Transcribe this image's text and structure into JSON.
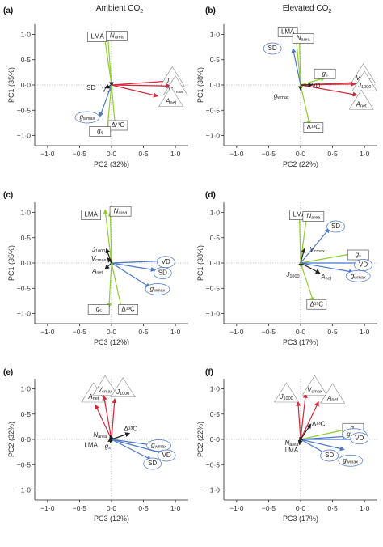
{
  "column_titles": {
    "left_main": "Ambient CO",
    "right_main": "Elevated CO",
    "sub": "2"
  },
  "colors": {
    "green": "#8fce2f",
    "blue": "#4b78c8",
    "red": "#d6263a",
    "black": "#222222",
    "box": "#555555"
  },
  "chart_data": [
    {
      "id": "a",
      "panel_label": "(a)",
      "type": "scatter",
      "xlabel": "PC2 (32%)",
      "ylabel": "PC1 (35%)",
      "xlim": [
        -1.2,
        1.2
      ],
      "ylim": [
        -1.2,
        1.2
      ],
      "xticks": [
        "−1·0",
        "−0·5",
        "0·0",
        "0·5",
        "1·0"
      ],
      "yticks": [
        "1·0",
        "0·5",
        "0·0",
        "−0·5",
        "−1·0"
      ],
      "vectors": [
        {
          "name": "LMA",
          "x": -0.12,
          "y": 1.05,
          "color": "green",
          "shape": "rect",
          "lx": -0.22,
          "ly": 0.95
        },
        {
          "name": "N",
          "sub": "area",
          "x": -0.06,
          "y": 1.0,
          "color": "green",
          "shape": "rect",
          "lx": 0.08,
          "ly": 0.97
        },
        {
          "name": "J",
          "sub": "1000",
          "x": 0.92,
          "y": 0.08,
          "color": "red",
          "shape": "tri",
          "lx": 0.95,
          "ly": 0.12
        },
        {
          "name": "V",
          "sub": "cmax",
          "x": 0.92,
          "y": -0.02,
          "color": "red",
          "shape": "tri",
          "lx": 1.0,
          "ly": -0.06
        },
        {
          "name": "A",
          "sub": "net",
          "x": 0.72,
          "y": -0.22,
          "color": "red",
          "shape": "tri",
          "lx": 0.93,
          "ly": -0.28
        },
        {
          "name": "SD",
          "x": -0.1,
          "y": -0.06,
          "color": "black",
          "shape": "none",
          "lx": -0.32,
          "ly": -0.06
        },
        {
          "name": "VD",
          "x": 0.0,
          "y": -0.02,
          "color": "black",
          "shape": "none",
          "lx": -0.08,
          "ly": -0.1
        },
        {
          "name": "g",
          "sub": "wmax",
          "x": -0.18,
          "y": -0.62,
          "color": "blue",
          "shape": "ellipse",
          "lx": -0.38,
          "ly": -0.64
        },
        {
          "name": "Δ¹³C",
          "x": 0.06,
          "y": -0.86,
          "color": "green",
          "shape": "rect",
          "lx": 0.1,
          "ly": -0.8
        },
        {
          "name": "g",
          "sub": "s",
          "x": -0.07,
          "y": -0.92,
          "color": "green",
          "shape": "rect",
          "lx": -0.18,
          "ly": -0.92
        }
      ]
    },
    {
      "id": "b",
      "panel_label": "(b)",
      "type": "scatter",
      "xlabel": "PC2 (22%)",
      "ylabel": "PC1 (38%)",
      "xlim": [
        -1.2,
        1.2
      ],
      "ylim": [
        -1.2,
        1.2
      ],
      "xticks": [
        "−1·0",
        "−0·5",
        "0·0",
        "0·5",
        "1·0"
      ],
      "yticks": [
        "1·0",
        "0·5",
        "0·0",
        "−0·5",
        "−1·0"
      ],
      "vectors": [
        {
          "name": "LMA",
          "x": -0.08,
          "y": 1.05,
          "color": "green",
          "shape": "rect",
          "lx": -0.2,
          "ly": 1.05
        },
        {
          "name": "N",
          "sub": "area",
          "x": -0.02,
          "y": 0.98,
          "color": "green",
          "shape": "rect",
          "lx": 0.04,
          "ly": 0.92
        },
        {
          "name": "SD",
          "x": -0.12,
          "y": 0.72,
          "color": "blue",
          "shape": "ellipse",
          "lx": -0.44,
          "ly": 0.72
        },
        {
          "name": "g",
          "sub": "s",
          "x": 0.38,
          "y": 0.14,
          "color": "green",
          "shape": "rect",
          "lx": 0.38,
          "ly": 0.22
        },
        {
          "name": "V",
          "sub": "cmax",
          "x": 0.9,
          "y": 0.05,
          "color": "red",
          "shape": "tri",
          "lx": 0.98,
          "ly": 0.18
        },
        {
          "name": "J",
          "sub": "1000",
          "x": 0.85,
          "y": 0.02,
          "color": "red",
          "shape": "tri",
          "lx": 1.0,
          "ly": 0.03
        },
        {
          "name": "A",
          "sub": "net",
          "x": 0.88,
          "y": -0.2,
          "color": "red",
          "shape": "tri",
          "lx": 0.95,
          "ly": -0.34
        },
        {
          "name": "VD",
          "x": 0.18,
          "y": 0.0,
          "color": "black",
          "shape": "none",
          "lx": 0.24,
          "ly": -0.02
        },
        {
          "name": "g",
          "sub": "wmax",
          "x": 0.0,
          "y": -0.1,
          "color": "black",
          "shape": "none",
          "lx": -0.3,
          "ly": -0.22
        },
        {
          "name": "Δ¹³C",
          "x": 0.14,
          "y": -0.78,
          "color": "green",
          "shape": "rect",
          "lx": 0.2,
          "ly": -0.84
        }
      ]
    },
    {
      "id": "c",
      "panel_label": "(c)",
      "type": "scatter",
      "xlabel": "PC3 (12%)",
      "ylabel": "PC1 (35%)",
      "xlim": [
        -1.2,
        1.2
      ],
      "ylim": [
        -1.2,
        1.2
      ],
      "xticks": [
        "−1·0",
        "−0·5",
        "0·0",
        "0·5",
        "1·0"
      ],
      "yticks": [
        "1·0",
        "0·5",
        "0·0",
        "−0·5",
        "−1·0"
      ],
      "vectors": [
        {
          "name": "LMA",
          "x": -0.1,
          "y": 1.05,
          "color": "green",
          "shape": "rect",
          "lx": -0.32,
          "ly": 0.95
        },
        {
          "name": "N",
          "sub": "area",
          "x": -0.02,
          "y": 1.0,
          "color": "green",
          "shape": "rect",
          "lx": 0.14,
          "ly": 1.02
        },
        {
          "name": "J",
          "sub": "1000",
          "x": -0.08,
          "y": 0.28,
          "color": "black",
          "shape": "none",
          "lx": -0.2,
          "ly": 0.26
        },
        {
          "name": "V",
          "sub": "cmax",
          "x": -0.06,
          "y": 0.1,
          "color": "black",
          "shape": "none",
          "lx": -0.2,
          "ly": 0.08
        },
        {
          "name": "A",
          "sub": "net",
          "x": -0.1,
          "y": -0.12,
          "color": "black",
          "shape": "none",
          "lx": -0.22,
          "ly": -0.17
        },
        {
          "name": "VD",
          "x": 0.78,
          "y": 0.04,
          "color": "blue",
          "shape": "ellipse",
          "lx": 0.85,
          "ly": 0.02
        },
        {
          "name": "SD",
          "x": 0.68,
          "y": -0.14,
          "color": "blue",
          "shape": "ellipse",
          "lx": 0.8,
          "ly": -0.2
        },
        {
          "name": "g",
          "sub": "wmax",
          "x": 0.6,
          "y": -0.48,
          "color": "blue",
          "shape": "ellipse",
          "lx": 0.72,
          "ly": -0.52
        },
        {
          "name": "Δ¹³C",
          "x": 0.16,
          "y": -0.92,
          "color": "green",
          "shape": "rect",
          "lx": 0.26,
          "ly": -0.92
        },
        {
          "name": "g",
          "sub": "s",
          "x": -0.04,
          "y": -0.88,
          "color": "green",
          "shape": "rect",
          "lx": -0.2,
          "ly": -0.92
        }
      ]
    },
    {
      "id": "d",
      "panel_label": "(d)",
      "type": "scatter",
      "xlabel": "PC3 (17%)",
      "ylabel": "PC1 (38%)",
      "xlim": [
        -1.2,
        1.2
      ],
      "ylim": [
        -1.2,
        1.2
      ],
      "xticks": [
        "−1·0",
        "−0·5",
        "0·0",
        "0·5",
        "1·0"
      ],
      "yticks": [
        "1·0",
        "0·5",
        "0·0",
        "−0·5",
        "−1·0"
      ],
      "vectors": [
        {
          "name": "LMA",
          "x": -0.02,
          "y": 1.05,
          "color": "green",
          "shape": "rect",
          "lx": -0.02,
          "ly": 0.95
        },
        {
          "name": "N",
          "sub": "area",
          "x": 0.1,
          "y": 0.98,
          "color": "green",
          "shape": "rect",
          "lx": 0.2,
          "ly": 0.92
        },
        {
          "name": "SD",
          "x": 0.45,
          "y": 0.68,
          "color": "blue",
          "shape": "ellipse",
          "lx": 0.55,
          "ly": 0.72
        },
        {
          "name": "V",
          "sub": "cmax",
          "x": 0.06,
          "y": 0.28,
          "color": "black",
          "shape": "none",
          "lx": 0.26,
          "ly": 0.26
        },
        {
          "name": "g",
          "sub": "s",
          "x": 0.88,
          "y": 0.2,
          "color": "green",
          "shape": "rect",
          "lx": 0.9,
          "ly": 0.16
        },
        {
          "name": "VD",
          "x": 0.92,
          "y": 0.0,
          "color": "blue",
          "shape": "ellipse",
          "lx": 0.98,
          "ly": -0.04
        },
        {
          "name": "J",
          "sub": "1000",
          "x": 0.02,
          "y": -0.08,
          "color": "black",
          "shape": "none",
          "lx": -0.12,
          "ly": -0.24
        },
        {
          "name": "A",
          "sub": "net",
          "x": 0.3,
          "y": -0.2,
          "color": "black",
          "shape": "none",
          "lx": 0.4,
          "ly": -0.28
        },
        {
          "name": "g",
          "sub": "wmax",
          "x": 0.82,
          "y": -0.18,
          "color": "blue",
          "shape": "ellipse",
          "lx": 0.9,
          "ly": -0.26
        },
        {
          "name": "Δ¹³C",
          "x": 0.2,
          "y": -0.76,
          "color": "green",
          "shape": "rect",
          "lx": 0.25,
          "ly": -0.82
        }
      ]
    },
    {
      "id": "e",
      "panel_label": "(e)",
      "type": "scatter",
      "xlabel": "PC3 (12%)",
      "ylabel": "PC2 (32%)",
      "xlim": [
        -1.2,
        1.2
      ],
      "ylim": [
        -1.2,
        1.2
      ],
      "xticks": [
        "−1·0",
        "−0·5",
        "0·0",
        "0·5",
        "1·0"
      ],
      "yticks": [
        "1·0",
        "0·5",
        "0·0",
        "−0·5",
        "−1·0"
      ],
      "vectors": [
        {
          "name": "A",
          "sub": "net",
          "x": -0.25,
          "y": 0.68,
          "color": "red",
          "shape": "tri",
          "lx": -0.28,
          "ly": 0.88
        },
        {
          "name": "V",
          "sub": "cmax",
          "x": -0.12,
          "y": 0.86,
          "color": "red",
          "shape": "tri",
          "lx": -0.1,
          "ly": 1.02
        },
        {
          "name": "J",
          "sub": "1000",
          "x": 0.05,
          "y": 0.8,
          "color": "red",
          "shape": "tri",
          "lx": 0.18,
          "ly": 0.98
        },
        {
          "name": "Δ¹³C",
          "x": 0.28,
          "y": 0.12,
          "color": "black",
          "shape": "none",
          "lx": 0.3,
          "ly": 0.2
        },
        {
          "name": "N",
          "sub": "area",
          "x": -0.02,
          "y": 0.08,
          "color": "black",
          "shape": "none",
          "lx": -0.18,
          "ly": 0.08
        },
        {
          "name": "g",
          "sub": "s",
          "x": -0.02,
          "y": -0.06,
          "color": "black",
          "shape": "none",
          "lx": -0.06,
          "ly": -0.14
        },
        {
          "name": "LMA",
          "x": -0.05,
          "y": -0.04,
          "color": "black",
          "shape": "none",
          "lx": -0.32,
          "ly": -0.12
        },
        {
          "name": "g",
          "sub": "wmax",
          "x": 0.68,
          "y": -0.12,
          "color": "blue",
          "shape": "ellipse",
          "lx": 0.74,
          "ly": -0.12
        },
        {
          "name": "VD",
          "x": 0.82,
          "y": -0.28,
          "color": "blue",
          "shape": "ellipse",
          "lx": 0.86,
          "ly": -0.32
        },
        {
          "name": "SD",
          "x": 0.62,
          "y": -0.4,
          "color": "blue",
          "shape": "ellipse",
          "lx": 0.64,
          "ly": -0.48
        }
      ]
    },
    {
      "id": "f",
      "panel_label": "(f)",
      "type": "scatter",
      "xlabel": "PC3 (17%)",
      "ylabel": "PC2 (22%)",
      "xlim": [
        -1.2,
        1.2
      ],
      "ylim": [
        -1.2,
        1.2
      ],
      "xticks": [
        "−1·0",
        "−0·5",
        "0·0",
        "0·5",
        "1·0"
      ],
      "yticks": [
        "1·0",
        "0·5",
        "0·0",
        "−0·5",
        "−1·0"
      ],
      "vectors": [
        {
          "name": "J",
          "sub": "1000",
          "x": -0.04,
          "y": 0.74,
          "color": "red",
          "shape": "tri",
          "lx": -0.22,
          "ly": 0.88
        },
        {
          "name": "V",
          "sub": "cmax",
          "x": 0.08,
          "y": 0.9,
          "color": "red",
          "shape": "tri",
          "lx": 0.22,
          "ly": 1.02
        },
        {
          "name": "A",
          "sub": "net",
          "x": 0.28,
          "y": 0.74,
          "color": "red",
          "shape": "tri",
          "lx": 0.5,
          "ly": 0.86
        },
        {
          "name": "Δ¹³C",
          "x": 0.16,
          "y": 0.3,
          "color": "black",
          "shape": "none",
          "lx": 0.28,
          "ly": 0.3
        },
        {
          "name": "g",
          "sub": "s",
          "x": 0.8,
          "y": 0.22,
          "color": "green",
          "shape": "rect",
          "lx": 0.82,
          "ly": 0.22
        },
        {
          "name": "g",
          "sub": "wmax",
          "x": 0.72,
          "y": 0.06,
          "color": "blue",
          "shape": "ellipse",
          "lx": 0.84,
          "ly": 0.1
        },
        {
          "name": "VD",
          "x": 0.86,
          "y": 0.0,
          "color": "blue",
          "shape": "ellipse",
          "lx": 0.92,
          "ly": 0.02
        },
        {
          "name": "SD",
          "x": 0.45,
          "y": -0.32,
          "color": "blue",
          "shape": "ellipse",
          "lx": 0.45,
          "ly": -0.32
        },
        {
          "name": "g",
          "sub": "wmax",
          "x": 0.68,
          "y": -0.2,
          "color": "blue",
          "shape": "ellipse",
          "lx": 0.78,
          "ly": -0.42
        },
        {
          "name": "N",
          "sub": "area",
          "x": -0.02,
          "y": -0.04,
          "color": "black",
          "shape": "none",
          "lx": -0.14,
          "ly": -0.08
        },
        {
          "name": "LMA",
          "x": -0.02,
          "y": -0.1,
          "color": "black",
          "shape": "none",
          "lx": -0.14,
          "ly": -0.22
        }
      ]
    }
  ]
}
